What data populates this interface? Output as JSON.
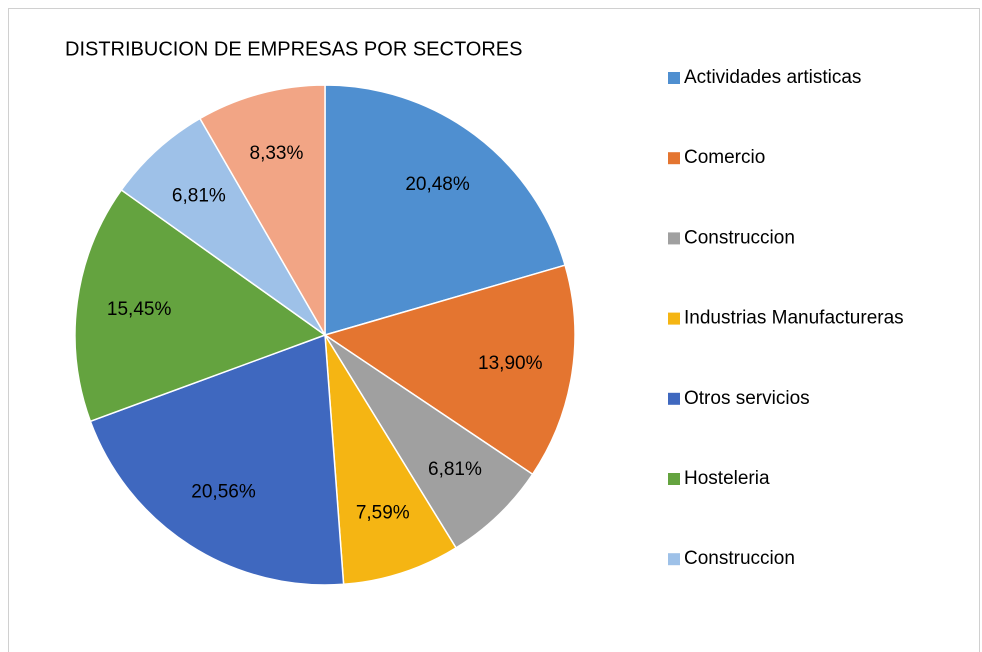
{
  "chart_data": {
    "type": "pie",
    "title": "DISTRIBUCION DE EMPRESAS POR SECTORES",
    "categories": [
      "Actividades artisticas",
      "Comercio",
      "Construccion",
      "Industrias Manufactureras",
      "Otros servicios",
      "Hosteleria",
      "Construccion",
      null
    ],
    "values": [
      20.48,
      13.9,
      6.81,
      7.59,
      20.56,
      15.45,
      6.81,
      8.33
    ],
    "value_labels": [
      "20,48%",
      "13,90%",
      "6,81%",
      "7,59%",
      "20,56%",
      "15,45%",
      "6,81%",
      "8,33%"
    ],
    "colors": [
      "#4f8fd0",
      "#e47530",
      "#a0a0a0",
      "#f5b513",
      "#3f68bf",
      "#64a33f",
      "#9ec1e8",
      "#f2a585"
    ]
  }
}
